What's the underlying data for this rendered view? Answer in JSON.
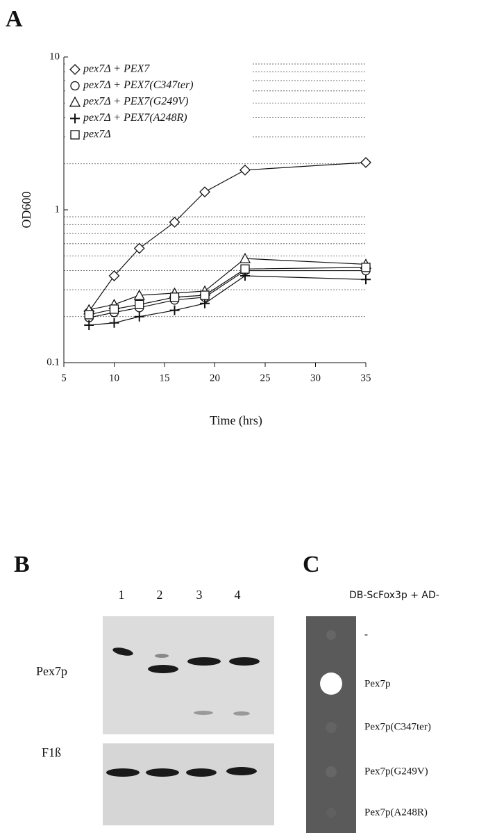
{
  "chart_data": {
    "type": "line",
    "panel_label": "A",
    "x_label": "Time (hrs)",
    "y_label": "OD600",
    "x": [
      7.5,
      10,
      12.5,
      16,
      19,
      23,
      35
    ],
    "series": [
      {
        "name": "pex7Δ + PEX7",
        "marker": "diamond",
        "color": "#111",
        "values": [
          0.217,
          0.37,
          0.56,
          0.83,
          1.31,
          1.82,
          2.04
        ]
      },
      {
        "name": "pex7Δ + PEX7(C347ter)",
        "marker": "circle",
        "color": "#111",
        "values": [
          0.197,
          0.213,
          0.229,
          0.257,
          0.268,
          0.4,
          0.4
        ]
      },
      {
        "name": "pex7Δ + PEX7(G249V)",
        "marker": "triangle",
        "color": "#111",
        "values": [
          0.222,
          0.24,
          0.276,
          0.285,
          0.294,
          0.48,
          0.44
        ]
      },
      {
        "name": "pex7Δ + PEX7(A248R)",
        "marker": "plus",
        "color": "#111",
        "values": [
          0.176,
          0.182,
          0.2,
          0.22,
          0.244,
          0.37,
          0.35
        ]
      },
      {
        "name": "pex7Δ",
        "marker": "square",
        "color": "#111",
        "values": [
          0.206,
          0.224,
          0.24,
          0.268,
          0.276,
          0.41,
          0.42
        ]
      }
    ],
    "xlim": [
      5,
      35
    ],
    "xticks": [
      5,
      10,
      15,
      20,
      25,
      30,
      35
    ],
    "ylim": [
      0.1,
      10
    ],
    "yticks": [
      0.1,
      1,
      10
    ],
    "log_y": true,
    "minor_yticks": [
      0.2,
      0.3,
      0.4,
      0.5,
      0.6,
      0.7,
      0.8,
      0.9,
      2,
      3,
      4,
      5,
      6,
      7,
      8,
      9
    ],
    "grid": "dotted",
    "legend": "upper left"
  },
  "blot": {
    "panel_label": "B",
    "lanes": [
      "1",
      "2",
      "3",
      "4"
    ],
    "rows": [
      "Pex7p",
      "F1ß"
    ]
  },
  "two_hybrid": {
    "panel_label": "C",
    "header": "DB-ScFox3p  + AD-",
    "rows": [
      "-",
      "Pex7p",
      "Pex7p(C347ter)",
      "Pex7p(G249V)",
      "Pex7p(A248R)"
    ]
  }
}
